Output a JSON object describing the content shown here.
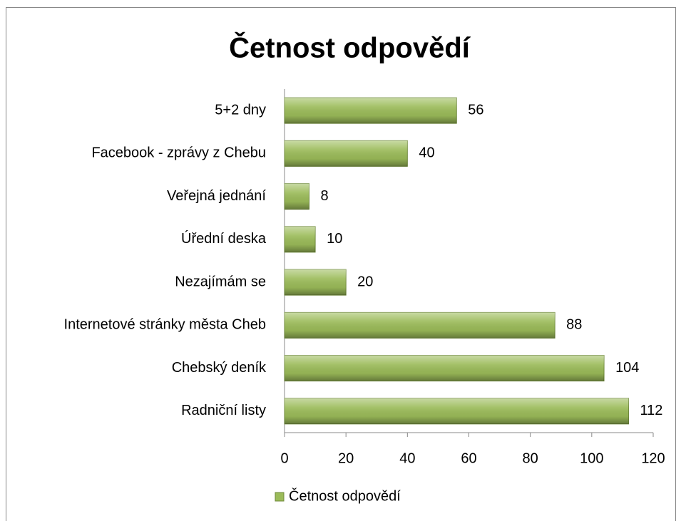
{
  "chart_data": {
    "type": "bar",
    "orientation": "horizontal",
    "title": "Četnost odpovědí",
    "categories": [
      "5+2 dny",
      "Facebook - zprávy z Chebu",
      "Veřejná jednání",
      "Úřední deska",
      "Nezajímám se",
      "Internetové stránky města Cheb",
      "Chebský deník",
      "Radniční listy"
    ],
    "series": [
      {
        "name": "Četnost odpovědí",
        "color": "#9bbb59",
        "values": [
          56,
          40,
          8,
          10,
          20,
          88,
          104,
          112
        ]
      }
    ],
    "xlim": [
      0,
      120
    ],
    "xticks": [
      0,
      20,
      40,
      60,
      80,
      100,
      120
    ],
    "legend": "bottom"
  }
}
